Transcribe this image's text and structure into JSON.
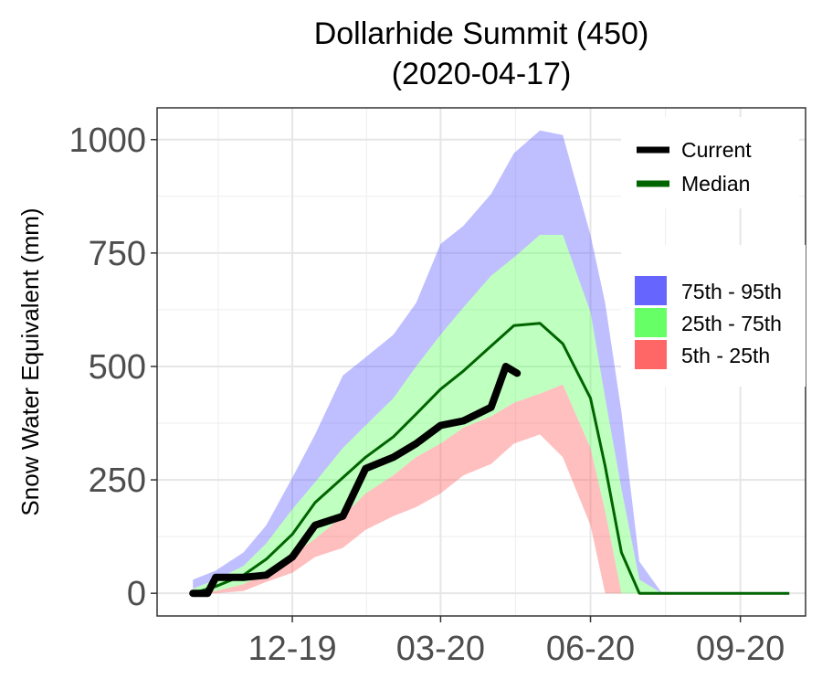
{
  "chart_data": {
    "type": "area",
    "title": "Dollarhide Summit (450)",
    "subtitle": "(2020-04-17)",
    "ylabel": "Snow Water Equivalent (mm)",
    "xlabel": "",
    "ylim": [
      -50,
      1070
    ],
    "xlim": [
      "2019-09-09",
      "2020-10-11"
    ],
    "x_tick_labels": [
      {
        "date": "2019-12-01",
        "label": "12-19"
      },
      {
        "date": "2020-03-01",
        "label": "03-20"
      },
      {
        "date": "2020-06-01",
        "label": "06-20"
      },
      {
        "date": "2020-09-01",
        "label": "09-20"
      }
    ],
    "y_ticks": [
      0,
      250,
      500,
      750,
      1000
    ],
    "y_tick_labels": [
      "0",
      "250",
      "500",
      "750",
      "1000"
    ],
    "grid": true,
    "legend_lines": [
      {
        "name": "Current",
        "color": "#000000"
      },
      {
        "name": "Median",
        "color": "#006400"
      }
    ],
    "legend_bands": [
      {
        "name": "75th - 95th",
        "color": "#6666ff"
      },
      {
        "name": "25th - 75th",
        "color": "#66ff66"
      },
      {
        "name": "5th - 25th",
        "color": "#ff6666"
      }
    ],
    "legend_position": "right",
    "dates": [
      "2019-10-01",
      "2019-10-15",
      "2019-11-01",
      "2019-11-15",
      "2019-12-01",
      "2019-12-15",
      "2020-01-01",
      "2020-01-15",
      "2020-02-01",
      "2020-02-15",
      "2020-03-01",
      "2020-03-15",
      "2020-04-01",
      "2020-04-15",
      "2020-05-01",
      "2020-05-15",
      "2020-06-01",
      "2020-06-10",
      "2020-06-20",
      "2020-07-01",
      "2020-07-15",
      "2020-08-01",
      "2020-08-15",
      "2020-09-01",
      "2020-09-15",
      "2020-10-01"
    ],
    "p95": [
      30,
      50,
      90,
      150,
      255,
      350,
      480,
      520,
      570,
      640,
      770,
      810,
      880,
      970,
      1020,
      1010,
      790,
      640,
      400,
      70,
      0,
      0,
      0,
      0,
      0,
      0
    ],
    "p75": [
      10,
      30,
      60,
      110,
      185,
      245,
      320,
      370,
      430,
      500,
      570,
      630,
      700,
      740,
      790,
      790,
      620,
      430,
      230,
      30,
      0,
      0,
      0,
      0,
      0,
      0
    ],
    "median": [
      0,
      15,
      40,
      75,
      130,
      200,
      255,
      300,
      345,
      395,
      450,
      490,
      545,
      590,
      595,
      550,
      430,
      280,
      90,
      0,
      0,
      0,
      0,
      0,
      0,
      0
    ],
    "p25": [
      0,
      5,
      20,
      45,
      85,
      120,
      170,
      220,
      260,
      300,
      330,
      365,
      390,
      420,
      440,
      460,
      320,
      180,
      0,
      0,
      0,
      0,
      0,
      0,
      0,
      0
    ],
    "p5": [
      0,
      0,
      5,
      25,
      45,
      80,
      100,
      140,
      170,
      190,
      220,
      260,
      285,
      330,
      350,
      300,
      150,
      0,
      0,
      0,
      0,
      0,
      0,
      0,
      0,
      0
    ],
    "current": {
      "dates": [
        "2019-10-01",
        "2019-10-10",
        "2019-10-15",
        "2019-11-01",
        "2019-11-15",
        "2019-12-01",
        "2019-12-15",
        "2020-01-01",
        "2020-01-15",
        "2020-02-01",
        "2020-02-15",
        "2020-03-01",
        "2020-03-15",
        "2020-04-01",
        "2020-04-10",
        "2020-04-17"
      ],
      "values": [
        0,
        0,
        35,
        35,
        40,
        80,
        150,
        170,
        275,
        300,
        330,
        370,
        380,
        410,
        500,
        485
      ]
    }
  }
}
